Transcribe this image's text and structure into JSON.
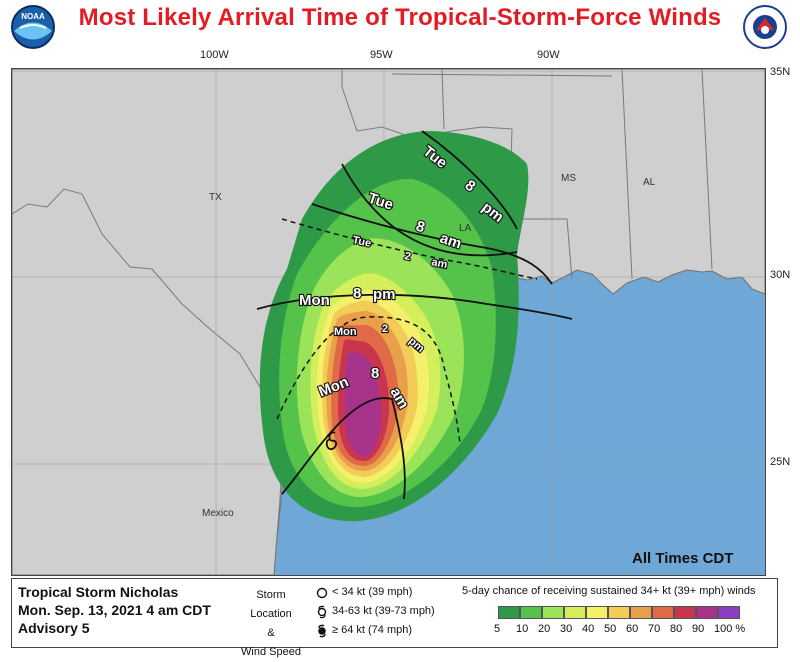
{
  "title": "Most Likely Arrival Time of Tropical-Storm-Force Winds",
  "logos": {
    "left": "NOAA",
    "right": "NATIONAL WEATHER SERVICE"
  },
  "longitude_labels": [
    "100W",
    "95W",
    "90W"
  ],
  "latitude_labels": [
    "35N",
    "30N",
    "25N"
  ],
  "region_labels": [
    "TX",
    "LA",
    "MS",
    "AL",
    "Mexico"
  ],
  "contours": {
    "tue_8pm": [
      "Tue",
      "8",
      "pm"
    ],
    "tue_8am": [
      "Tue",
      "8",
      "am"
    ],
    "tue_2am": [
      "Tue",
      "2",
      "am"
    ],
    "mon_8pm": [
      "Mon",
      "8",
      "pm"
    ],
    "mon_2pm": [
      "Mon",
      "2",
      "pm"
    ],
    "mon_8am": [
      "Mon",
      "8",
      "am"
    ]
  },
  "all_times": "All Times CDT",
  "storm": {
    "name": "Tropical Storm Nicholas",
    "datetime": "Mon. Sep. 13, 2021   4 am CDT",
    "advisory": "Advisory 5"
  },
  "key": {
    "storm_location": "Storm Location",
    "amp": "&",
    "wind_speed": "Wind Speed",
    "items": [
      "< 34 kt (39 mph)",
      "34-63 kt (39-73 mph)",
      "≥ 64 kt (74 mph)"
    ]
  },
  "probability": {
    "title": "5-day chance of receiving sustained 34+ kt (39+ mph) winds",
    "labels": [
      "5",
      "10",
      "20",
      "30",
      "40",
      "50",
      "60",
      "70",
      "80",
      "90",
      "100 %"
    ],
    "colors": [
      "#2e9a47",
      "#55c24a",
      "#9be45a",
      "#d4ef5b",
      "#f4f06b",
      "#f3cc57",
      "#e9a04b",
      "#e06a45",
      "#c9344e",
      "#a7338b",
      "#8d3fbf"
    ]
  },
  "colors": {
    "land": "#cfcfcf",
    "water": "#6fa7d7",
    "title_red": "#e31b23"
  }
}
